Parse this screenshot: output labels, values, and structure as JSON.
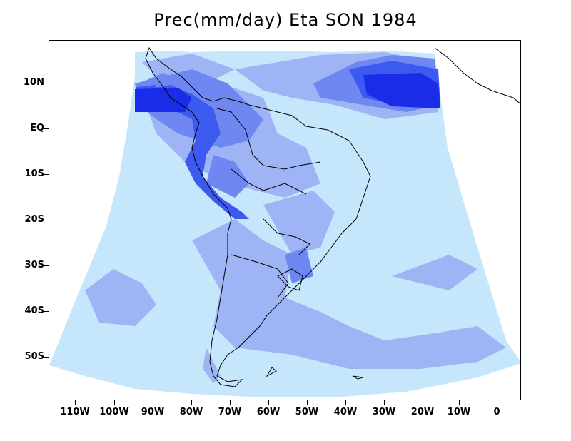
{
  "title": "Prec(mm/day) Eta SON 1984",
  "map": {
    "region": "South America",
    "field": "precipitation",
    "colors": {
      "level1": "#c6e6fb",
      "level2": "#9eb4f4",
      "level3": "#6e87f1",
      "level4": "#3c5af0",
      "level5": "#1a2ce8",
      "coast": "#000000"
    }
  },
  "axes": {
    "lat_labels": [
      "10N",
      "EQ",
      "10S",
      "20S",
      "30S",
      "40S",
      "50S"
    ],
    "lon_labels": [
      "110W",
      "100W",
      "90W",
      "80W",
      "70W",
      "60W",
      "50W",
      "40W",
      "30W",
      "20W",
      "10W",
      "0"
    ]
  }
}
